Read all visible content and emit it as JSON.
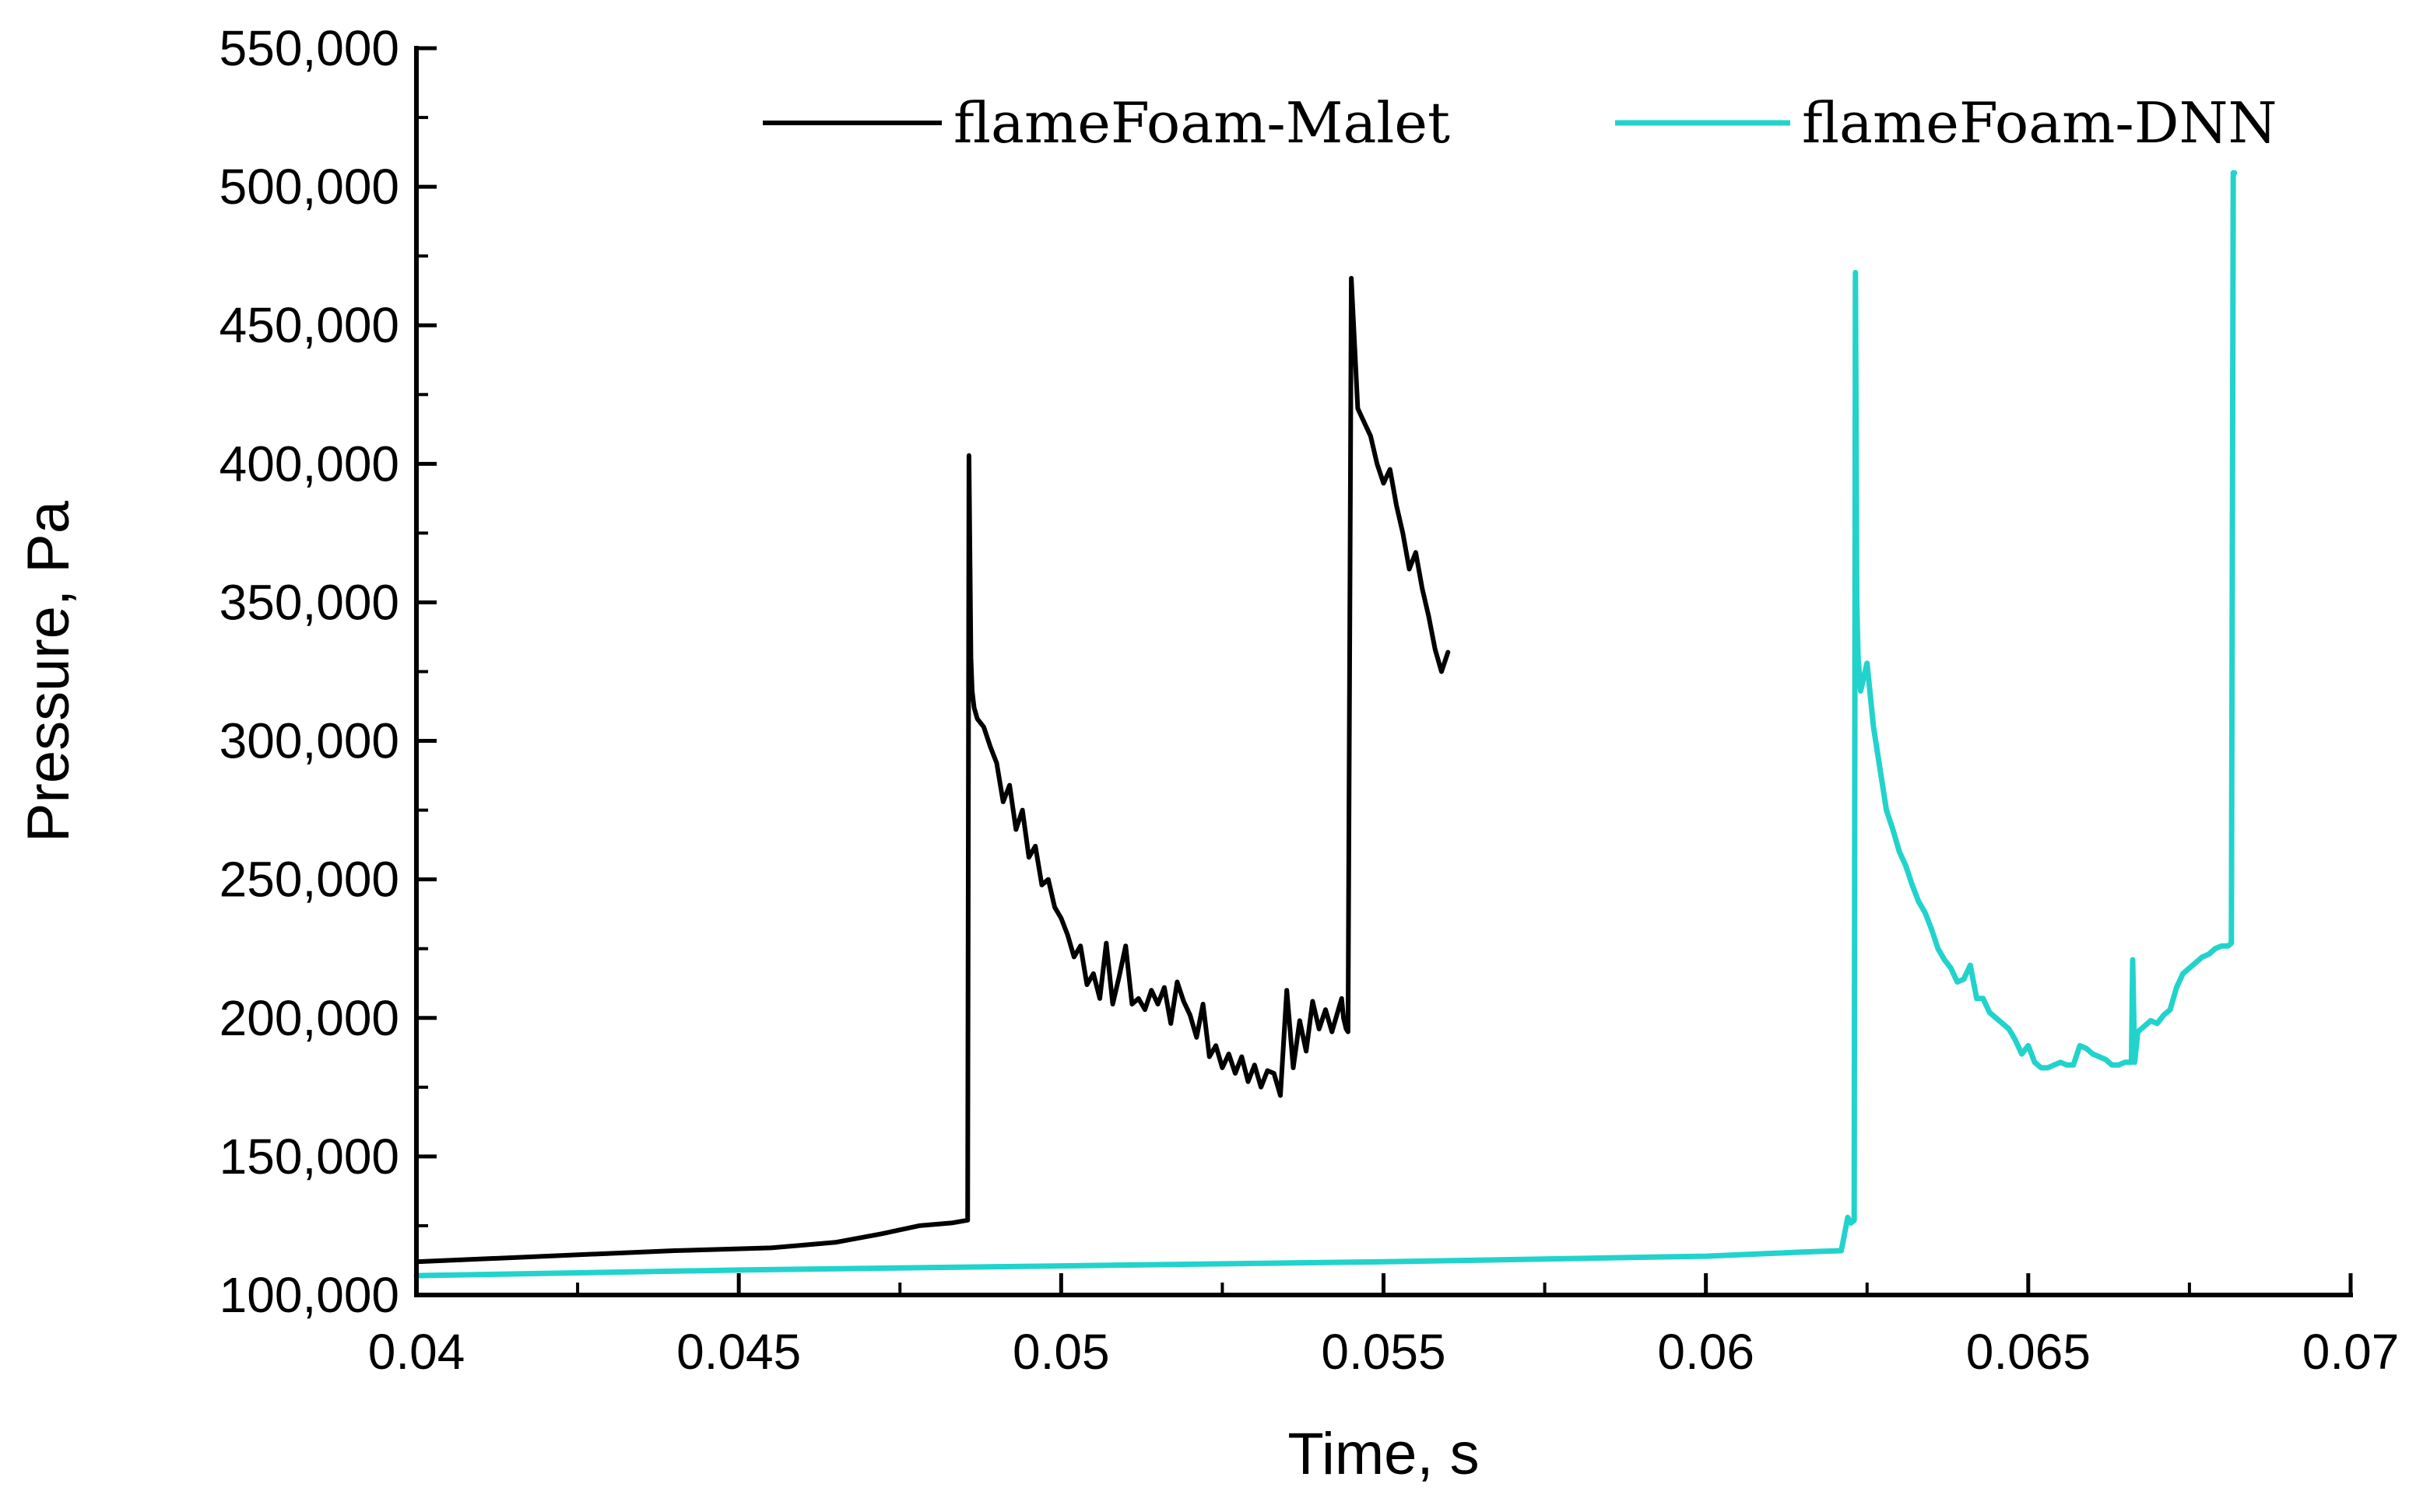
{
  "chart_data": {
    "type": "line",
    "title": "",
    "xlabel": "Time, s",
    "ylabel": "Pressure, Pa",
    "xlim": [
      0.04,
      0.07
    ],
    "ylim": [
      100000,
      550000
    ],
    "x_ticks": [
      0.04,
      0.045,
      0.05,
      0.055,
      0.06,
      0.065,
      0.07
    ],
    "x_tick_labels": [
      "0.04",
      "0.045",
      "0.05",
      "0.055",
      "0.06",
      "0.065",
      "0.07"
    ],
    "y_ticks": [
      100000,
      150000,
      200000,
      250000,
      300000,
      350000,
      400000,
      450000,
      500000,
      550000
    ],
    "y_tick_labels": [
      "100,000",
      "150,000",
      "200,000",
      "250,000",
      "300,000",
      "350,000",
      "400,000",
      "450,000",
      "500,000",
      "550,000"
    ],
    "grid": false,
    "legend_position": "top",
    "series": [
      {
        "name": "flameFoam-Malet",
        "color": "#000000",
        "x": [
          0.04,
          0.042,
          0.044,
          0.0455,
          0.0465,
          0.0472,
          0.0478,
          0.0483,
          0.04855,
          0.04857,
          0.0486,
          0.04862,
          0.04865,
          0.0487,
          0.0488,
          0.0489,
          0.049,
          0.0491,
          0.0492,
          0.0493,
          0.0494,
          0.0495,
          0.0496,
          0.0497,
          0.0498,
          0.0499,
          0.05,
          0.0501,
          0.0502,
          0.0503,
          0.0504,
          0.0505,
          0.0506,
          0.0507,
          0.0508,
          0.0509,
          0.051,
          0.0511,
          0.0512,
          0.0513,
          0.0514,
          0.0515,
          0.0516,
          0.0517,
          0.0518,
          0.0519,
          0.052,
          0.0521,
          0.0522,
          0.0523,
          0.0524,
          0.0525,
          0.0526,
          0.0527,
          0.0528,
          0.0529,
          0.053,
          0.0531,
          0.0532,
          0.0533,
          0.0534,
          0.0535,
          0.0536,
          0.0537,
          0.0538,
          0.0539,
          0.054,
          0.0541,
          0.0542,
          0.05435,
          0.05438,
          0.0544,
          0.05442,
          0.05445,
          0.0545,
          0.0546,
          0.0547,
          0.0548,
          0.0549,
          0.055,
          0.0551,
          0.0552,
          0.0553,
          0.0554,
          0.0555,
          0.0556,
          0.0557,
          0.0558,
          0.0559,
          0.056
        ],
        "y": [
          112000,
          114000,
          116000,
          117000,
          119000,
          122000,
          125000,
          126000,
          127000,
          403000,
          330000,
          318000,
          312000,
          308000,
          305000,
          298000,
          292000,
          278000,
          284000,
          268000,
          275000,
          258000,
          262000,
          248000,
          250000,
          240000,
          236000,
          230000,
          222000,
          226000,
          212000,
          216000,
          207000,
          227000,
          205000,
          215000,
          226000,
          205000,
          207000,
          203000,
          210000,
          205000,
          211000,
          198000,
          213000,
          206000,
          201000,
          193000,
          205000,
          186000,
          190000,
          182000,
          187000,
          180000,
          186000,
          177000,
          183000,
          175000,
          181000,
          180000,
          172000,
          210000,
          182000,
          199000,
          188000,
          206000,
          196000,
          203000,
          195000,
          207000,
          200000,
          198000,
          196000,
          195000,
          467000,
          420000,
          415000,
          410000,
          400000,
          393000,
          398000,
          385000,
          375000,
          362000,
          368000,
          355000,
          345000,
          333000,
          325000,
          332000
        ]
      },
      {
        "name": "flameFoam-DNN",
        "color": "#22d3cc",
        "x": [
          0.04,
          0.045,
          0.05,
          0.055,
          0.06,
          0.0615,
          0.0621,
          0.0622,
          0.06225,
          0.0623,
          0.06232,
          0.06234,
          0.06236,
          0.0624,
          0.0625,
          0.0626,
          0.0627,
          0.0628,
          0.0629,
          0.063,
          0.0631,
          0.0632,
          0.0633,
          0.0634,
          0.0635,
          0.0636,
          0.0637,
          0.0638,
          0.0639,
          0.064,
          0.0641,
          0.0642,
          0.0643,
          0.0644,
          0.0645,
          0.0646,
          0.0647,
          0.0648,
          0.0649,
          0.065,
          0.0651,
          0.0652,
          0.0653,
          0.0654,
          0.0655,
          0.0656,
          0.0657,
          0.0658,
          0.0659,
          0.066,
          0.0661,
          0.0662,
          0.0663,
          0.0664,
          0.0665,
          0.0666,
          0.06662,
          0.06665,
          0.0667,
          0.0668,
          0.0669,
          0.067,
          0.0671,
          0.0672,
          0.0673,
          0.0674,
          0.0675,
          0.0676,
          0.0677,
          0.0678,
          0.0679,
          0.068,
          0.0681,
          0.06815,
          0.06818,
          0.0682
        ],
        "y": [
          107000,
          109000,
          110500,
          112000,
          114000,
          115500,
          116000,
          128000,
          126000,
          127000,
          469000,
          350000,
          330000,
          318000,
          328000,
          305000,
          290000,
          275000,
          268000,
          260000,
          255000,
          248000,
          242000,
          238000,
          232000,
          225000,
          221000,
          218000,
          213000,
          214000,
          219000,
          207000,
          207000,
          202000,
          200000,
          198000,
          196000,
          192000,
          187000,
          190000,
          184000,
          182000,
          182000,
          183000,
          184000,
          183000,
          183000,
          190000,
          189000,
          187000,
          186000,
          185000,
          183000,
          183000,
          184000,
          184000,
          221000,
          184000,
          195000,
          197000,
          199000,
          198000,
          201000,
          203000,
          211000,
          216000,
          218000,
          220000,
          222000,
          223000,
          225000,
          226000,
          226000,
          227000,
          505000,
          505000
        ]
      }
    ]
  }
}
